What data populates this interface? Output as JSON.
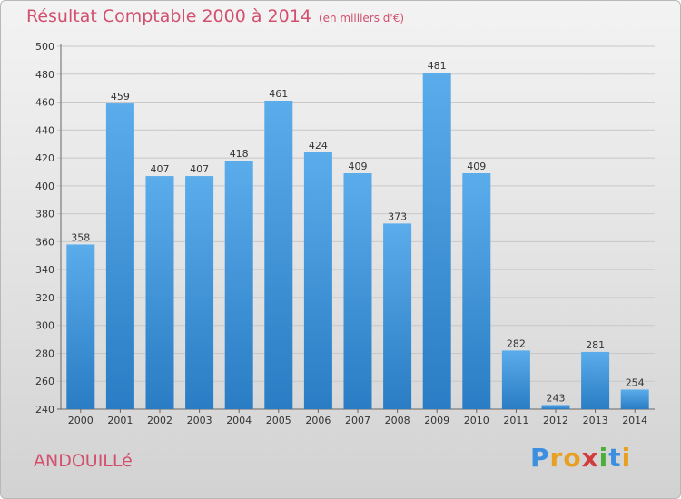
{
  "title": {
    "main": "Résultat Comptable 2000 à 2014",
    "sub": "(en milliers d'€)"
  },
  "commune": "ANDOUILLé",
  "logo": {
    "letters": [
      {
        "ch": "P",
        "color": "#3b8ee0"
      },
      {
        "ch": "r",
        "color": "#e8a020"
      },
      {
        "ch": "o",
        "color": "#e8a020"
      },
      {
        "ch": "x",
        "color": "#d23c3c"
      },
      {
        "ch": "i",
        "color": "#4caf3c"
      },
      {
        "ch": "t",
        "color": "#3b8ee0"
      },
      {
        "ch": "i",
        "color": "#e8a020"
      }
    ]
  },
  "colors": {
    "bar_top": "#5aaceb",
    "bar_bottom": "#2a7cc4",
    "grid": "#c8c8c8",
    "title": "#d2506e"
  },
  "chart_data": {
    "type": "bar",
    "categories": [
      "2000",
      "2001",
      "2002",
      "2003",
      "2004",
      "2005",
      "2006",
      "2007",
      "2008",
      "2009",
      "2010",
      "2011",
      "2012",
      "2013",
      "2014"
    ],
    "values": [
      358,
      459,
      407,
      407,
      418,
      461,
      424,
      409,
      373,
      481,
      409,
      282,
      243,
      281,
      254
    ],
    "ylim": [
      240,
      500
    ],
    "yticks": [
      240,
      260,
      280,
      300,
      320,
      340,
      360,
      380,
      400,
      420,
      440,
      460,
      480,
      500
    ],
    "grid": true
  }
}
